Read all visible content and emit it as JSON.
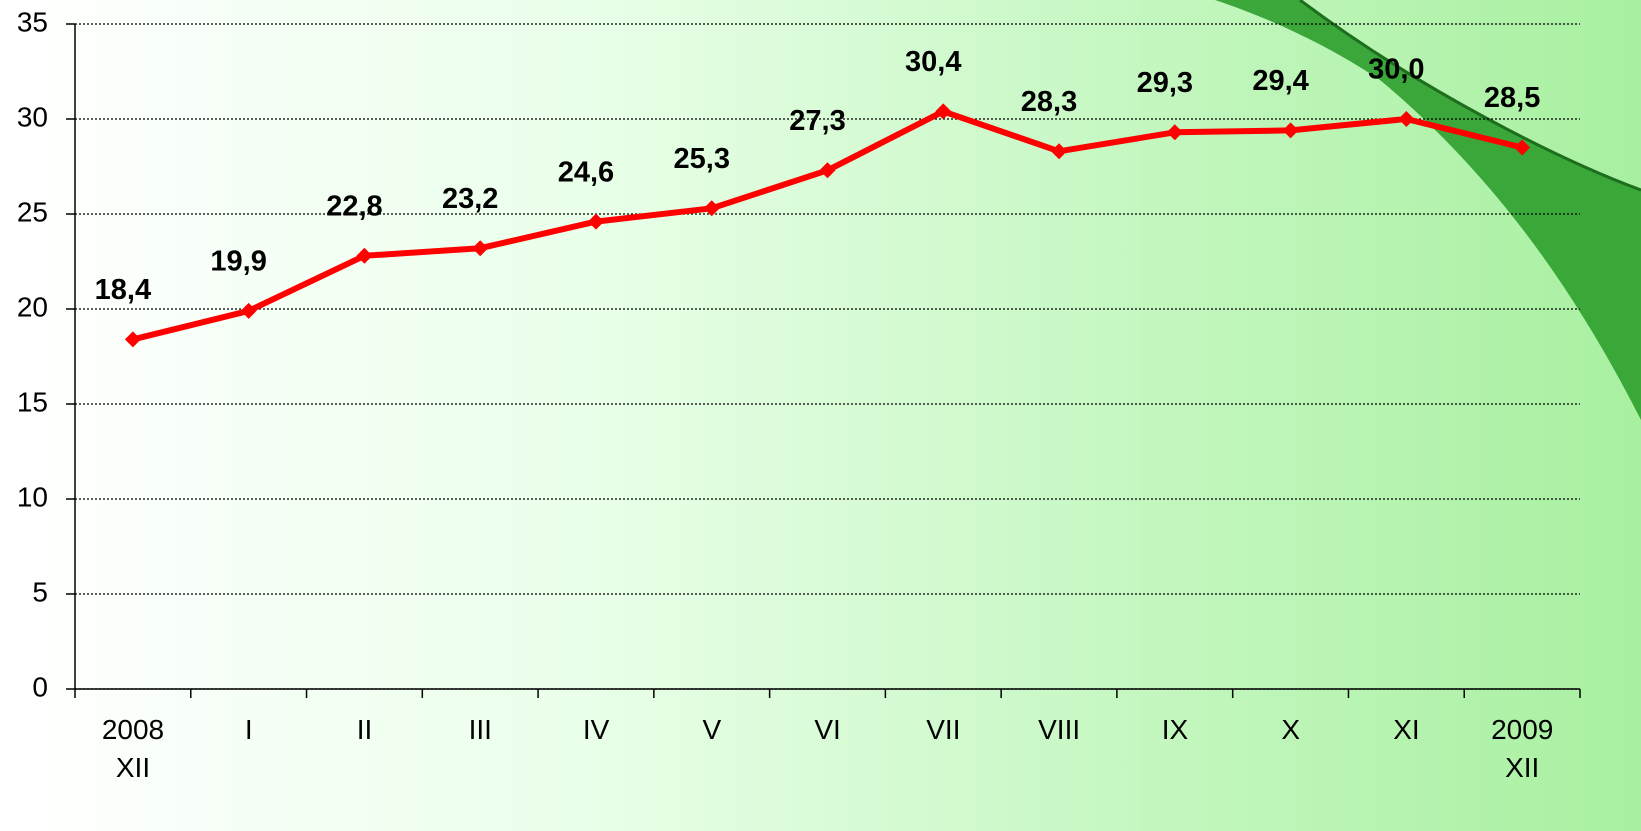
{
  "chart_data": {
    "type": "line",
    "categories": [
      "2008\nXII",
      "I",
      "II",
      "III",
      "IV",
      "V",
      "VI",
      "VII",
      "VIII",
      "IX",
      "X",
      "XI",
      "2009\nXII"
    ],
    "series": [
      {
        "color": "#ff0000",
        "values": [
          18.4,
          19.9,
          22.8,
          23.2,
          24.6,
          25.3,
          27.3,
          30.4,
          28.3,
          29.3,
          29.4,
          30.0,
          28.5
        ],
        "value_labels": [
          "18,4",
          "19,9",
          "22,8",
          "23,2",
          "24,6",
          "25,3",
          "27,3",
          "30,4",
          "28,3",
          "29,3",
          "29,4",
          "30,0",
          "28,5"
        ]
      }
    ],
    "ylim": [
      0,
      35
    ],
    "yticks": [
      0,
      5,
      10,
      15,
      20,
      25,
      30,
      35
    ],
    "grid": true
  }
}
